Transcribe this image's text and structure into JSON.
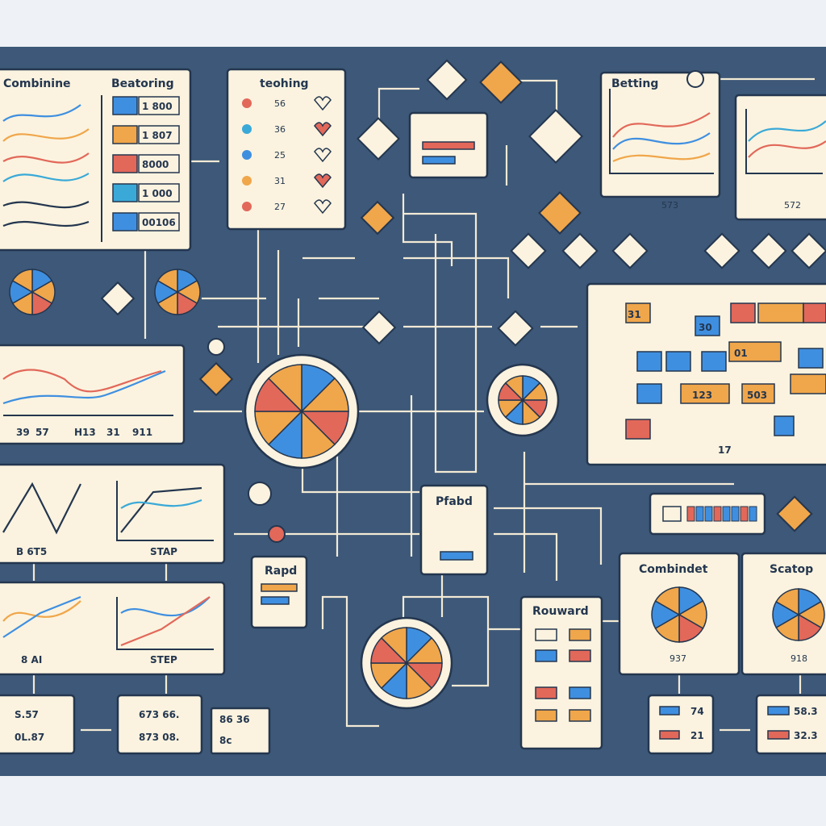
{
  "panels": {
    "combining": {
      "title": "Combinine"
    },
    "beatoring": {
      "title": "Beatoring",
      "rows": [
        "1 800",
        "1 807",
        "8000",
        "1 000",
        "00106"
      ]
    },
    "teohing": {
      "title": "teohing",
      "rows": [
        "56",
        "36",
        "25",
        "31",
        "27"
      ]
    },
    "betting": {
      "title": "Betting",
      "captions": [
        "573",
        "572"
      ]
    },
    "line_chart": {
      "labels": [
        "39",
        "57",
        "H13",
        "31",
        "911"
      ]
    },
    "step_charts": {
      "labels": [
        "B 6T5",
        "STAP",
        "8 AI",
        "STEP"
      ]
    },
    "bottom_left": {
      "rows": [
        "S.57",
        "0L.87",
        "673 66.",
        "873 08.",
        "86 36",
        "8c"
      ]
    },
    "rapd": {
      "title": "Rapd"
    },
    "pfabd": {
      "title": "Pfabd"
    },
    "rouward": {
      "title": "Rouward"
    },
    "combindet": {
      "title": "Combindet",
      "caption": "937",
      "values": [
        "74",
        "21"
      ]
    },
    "scatop": {
      "title": "Scatop",
      "caption": "918",
      "values": [
        "58.3",
        "32.3"
      ]
    },
    "grid_table": {
      "cells": [
        "31",
        "30",
        "01",
        "123",
        "503"
      ],
      "footer": "17"
    }
  }
}
